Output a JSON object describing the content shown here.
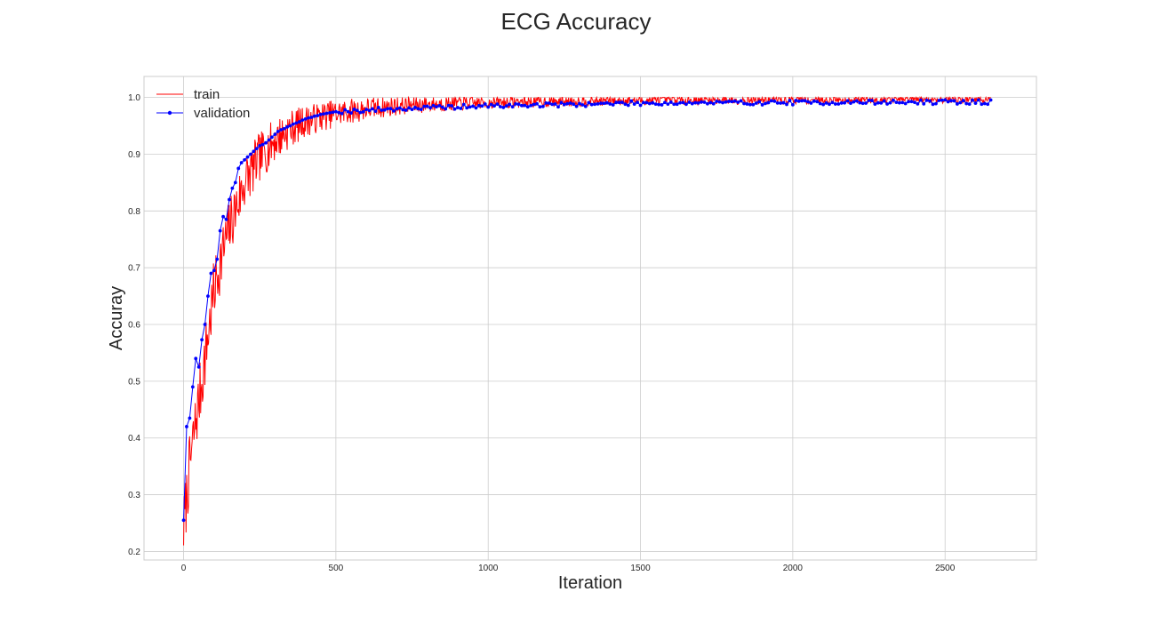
{
  "chart_data": {
    "type": "line",
    "title": "ECG Accuracy",
    "xlabel": "Iteration",
    "ylabel": "Accuray",
    "xlim": [
      -130,
      2800
    ],
    "ylim": [
      0.185,
      1.037
    ],
    "xticks": [
      0,
      500,
      1000,
      1500,
      2000,
      2500
    ],
    "yticks": [
      0.2,
      0.3,
      0.4,
      0.5,
      0.6,
      0.7,
      0.8,
      0.9,
      1.0
    ],
    "xtick_labels": [
      "0",
      "500",
      "1000",
      "1500",
      "2000",
      "2500"
    ],
    "ytick_labels": [
      "0.2",
      "0.3",
      "0.4",
      "0.5",
      "0.6",
      "0.7",
      "0.8",
      "0.9",
      "1.0"
    ],
    "grid": true,
    "legend_position": "top-left",
    "series": [
      {
        "name": "train",
        "color": "#ff0000",
        "marker": "none",
        "x_range": [
          0,
          2650
        ],
        "x_step": 2,
        "noise_seed": 7,
        "trend": {
          "x": [
            0,
            20,
            40,
            60,
            80,
            100,
            120,
            150,
            200,
            250,
            300,
            350,
            400,
            450,
            500,
            600,
            700,
            800,
            1000,
            1200,
            1500,
            2000,
            2650
          ],
          "y": [
            0.24,
            0.35,
            0.43,
            0.5,
            0.58,
            0.66,
            0.71,
            0.77,
            0.85,
            0.895,
            0.925,
            0.945,
            0.958,
            0.966,
            0.972,
            0.98,
            0.985,
            0.988,
            0.991,
            0.993,
            0.995,
            0.996,
            0.997
          ]
        },
        "noise_amplitude": {
          "x": [
            0,
            100,
            200,
            400,
            700,
            1000,
            1500,
            2650
          ],
          "y": [
            0.04,
            0.04,
            0.035,
            0.02,
            0.012,
            0.008,
            0.006,
            0.005
          ]
        },
        "ceiling": 1.0
      },
      {
        "name": "validation",
        "color": "#0000ff",
        "marker": "circle",
        "x": [
          0,
          10,
          20,
          30,
          40,
          50,
          60,
          70,
          80,
          90,
          100,
          110,
          120,
          130,
          140,
          150,
          160,
          170,
          180,
          190,
          200,
          210,
          220,
          230,
          240,
          250,
          260,
          270,
          280,
          290,
          300,
          310,
          320,
          330,
          340,
          350,
          360,
          370,
          380,
          390,
          400,
          410,
          420,
          430,
          440,
          450,
          460,
          470,
          480,
          490,
          500
        ],
        "y": [
          0.255,
          0.42,
          0.435,
          0.49,
          0.54,
          0.525,
          0.573,
          0.6,
          0.65,
          0.69,
          0.695,
          0.715,
          0.765,
          0.79,
          0.785,
          0.82,
          0.84,
          0.85,
          0.875,
          0.885,
          0.89,
          0.895,
          0.9,
          0.905,
          0.91,
          0.915,
          0.917,
          0.92,
          0.925,
          0.93,
          0.935,
          0.94,
          0.943,
          0.945,
          0.948,
          0.95,
          0.953,
          0.955,
          0.957,
          0.96,
          0.962,
          0.964,
          0.965,
          0.967,
          0.968,
          0.97,
          0.971,
          0.972,
          0.973,
          0.974,
          0.975
        ],
        "tail": {
          "x_start": 500,
          "x_end": 2650,
          "x_step": 10,
          "trend": {
            "x": [
              500,
              700,
              1000,
              1500,
              2000,
              2650
            ],
            "y": [
              0.975,
              0.98,
              0.985,
              0.99,
              0.991,
              0.992
            ]
          },
          "noise_amplitude": 0.004,
          "noise_seed": 19
        }
      }
    ]
  }
}
